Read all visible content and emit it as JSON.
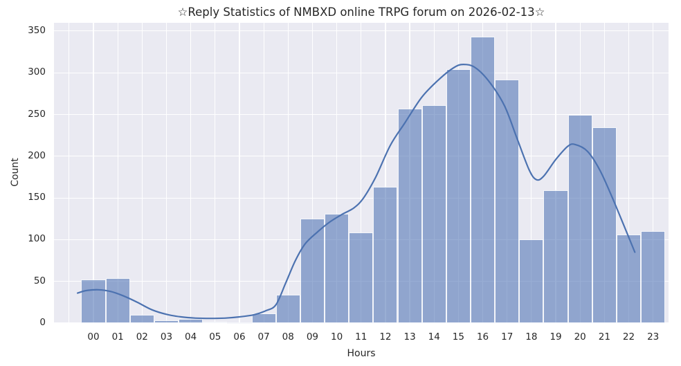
{
  "accent_colors": {
    "bar_fill": "rgba(70,107,176,0.55)",
    "bar_fill_hex_effective": "#90a4ce",
    "kde_line": "#4c72b0",
    "plot_background": "#eaeaf2",
    "gridline": "#ffffff",
    "text": "#262626"
  },
  "chart_data": {
    "type": "bar",
    "subtype": "histogram_with_kde",
    "title": "☆Reply Statistics of NMBXD online TRPG forum on 2026-02-13☆",
    "xlabel": "Hours",
    "ylabel": "Count",
    "categories": [
      "00",
      "01",
      "02",
      "03",
      "04",
      "05",
      "06",
      "07",
      "08",
      "09",
      "10",
      "11",
      "12",
      "13",
      "14",
      "15",
      "16",
      "17",
      "18",
      "19",
      "20",
      "21",
      "22",
      "23"
    ],
    "values": [
      52,
      54,
      10,
      3,
      5,
      2,
      1,
      12,
      34,
      125,
      131,
      109,
      163,
      257,
      261,
      304,
      343,
      292,
      100,
      159,
      250,
      235,
      106,
      110
    ],
    "yticks": [
      0,
      50,
      100,
      150,
      200,
      250,
      300,
      350
    ],
    "ylim": [
      0,
      360
    ],
    "grid": "on",
    "legend": "none",
    "kde_curve_points": [
      [
        -0.65,
        36
      ],
      [
        -0.3,
        39
      ],
      [
        0.2,
        40
      ],
      [
        0.7,
        38
      ],
      [
        1.2,
        33
      ],
      [
        1.8,
        25
      ],
      [
        2.4,
        16
      ],
      [
        3.0,
        10.5
      ],
      [
        3.6,
        7.5
      ],
      [
        4.2,
        6.0
      ],
      [
        4.8,
        5.6
      ],
      [
        5.4,
        6.0
      ],
      [
        6.0,
        7.5
      ],
      [
        6.6,
        10
      ],
      [
        7.1,
        15
      ],
      [
        7.5,
        22
      ],
      [
        7.9,
        48
      ],
      [
        8.3,
        75
      ],
      [
        8.7,
        95
      ],
      [
        9.2,
        109
      ],
      [
        9.7,
        121
      ],
      [
        10.2,
        130
      ],
      [
        10.7,
        138
      ],
      [
        11.1,
        150
      ],
      [
        11.6,
        175
      ],
      [
        12.2,
        213
      ],
      [
        12.8,
        240
      ],
      [
        13.5,
        271
      ],
      [
        14.2,
        292
      ],
      [
        14.8,
        306
      ],
      [
        15.2,
        310
      ],
      [
        15.7,
        306
      ],
      [
        16.3,
        288
      ],
      [
        16.9,
        260
      ],
      [
        17.4,
        222
      ],
      [
        17.9,
        184
      ],
      [
        18.2,
        172
      ],
      [
        18.5,
        176
      ],
      [
        19.0,
        196
      ],
      [
        19.5,
        212
      ],
      [
        19.8,
        214
      ],
      [
        20.3,
        206
      ],
      [
        20.8,
        184
      ],
      [
        21.3,
        152
      ],
      [
        21.8,
        117
      ],
      [
        22.25,
        85
      ]
    ]
  }
}
